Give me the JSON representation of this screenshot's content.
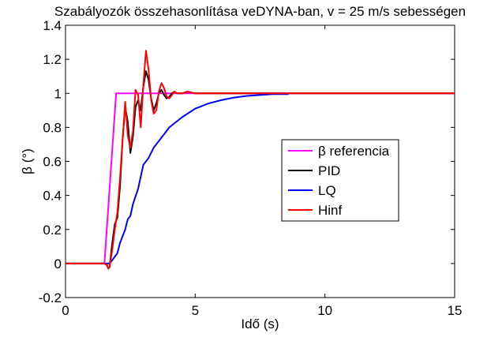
{
  "chart_data": {
    "type": "line",
    "title": "Szabályozók összehasonlítása veDYNA-ban, v = 25 m/s sebességen",
    "xlabel": "Idő (s)",
    "ylabel": "β (°)",
    "xlim": [
      0,
      15
    ],
    "ylim": [
      -0.2,
      1.4
    ],
    "xticks": [
      0,
      5,
      10,
      15
    ],
    "yticks": [
      -0.2,
      0,
      0.2,
      0.4,
      0.6,
      0.8,
      1,
      1.2,
      1.4
    ],
    "xtick_labels": [
      "0",
      "5",
      "10",
      "15"
    ],
    "ytick_labels": [
      "-0.2",
      "0",
      "0.2",
      "0.4",
      "0.6",
      "0.8",
      "1",
      "1.2",
      "1.4"
    ],
    "grid": false,
    "legend_position": "center-right",
    "colors": {
      "beta_ref": "#ff00ff",
      "pid": "#000000",
      "lq": "#0000ff",
      "hinf": "#ff0000"
    },
    "series": [
      {
        "name": "β referencia",
        "key": "beta_ref",
        "x": [
          0,
          1.5,
          1.95,
          15
        ],
        "y": [
          0,
          0,
          1,
          1
        ]
      },
      {
        "name": "PID",
        "key": "pid",
        "x": [
          0,
          1.5,
          1.6,
          1.65,
          1.7,
          1.8,
          1.9,
          2.0,
          2.1,
          2.2,
          2.3,
          2.4,
          2.5,
          2.6,
          2.7,
          2.8,
          2.9,
          3.0,
          3.1,
          3.2,
          3.3,
          3.4,
          3.5,
          3.6,
          3.7,
          3.8,
          3.9,
          4.0,
          4.1,
          4.2,
          4.3,
          4.5,
          4.7,
          5.0,
          6.0,
          15
        ],
        "y": [
          0,
          0,
          -0.01,
          -0.03,
          -0.02,
          0.12,
          0.23,
          0.27,
          0.45,
          0.73,
          0.92,
          0.83,
          0.65,
          0.75,
          0.92,
          0.96,
          0.9,
          1.04,
          1.13,
          1.08,
          0.97,
          0.9,
          0.94,
          1.0,
          1.02,
          0.99,
          0.97,
          0.98,
          1.0,
          1.01,
          1.0,
          1.0,
          1.01,
          1.0,
          1.0,
          1.0
        ]
      },
      {
        "name": "LQ",
        "key": "lq",
        "x": [
          0,
          1.5,
          1.7,
          1.8,
          1.9,
          2.0,
          2.1,
          2.2,
          2.3,
          2.4,
          2.5,
          2.6,
          2.8,
          3.0,
          3.2,
          3.4,
          3.6,
          3.8,
          4.0,
          4.5,
          5.0,
          5.5,
          6.0,
          6.5,
          7.0,
          7.5,
          8.0,
          8.6
        ],
        "y": [
          0,
          0,
          0,
          0.02,
          0.04,
          0.06,
          0.12,
          0.16,
          0.2,
          0.26,
          0.28,
          0.35,
          0.44,
          0.58,
          0.62,
          0.68,
          0.72,
          0.76,
          0.8,
          0.86,
          0.91,
          0.94,
          0.96,
          0.975,
          0.985,
          0.99,
          0.995,
          0.995
        ]
      },
      {
        "name": "Hinf",
        "key": "hinf",
        "x": [
          0,
          1.5,
          1.6,
          1.65,
          1.7,
          1.8,
          1.9,
          2.0,
          2.1,
          2.2,
          2.3,
          2.4,
          2.5,
          2.6,
          2.7,
          2.8,
          2.9,
          3.0,
          3.1,
          3.2,
          3.3,
          3.4,
          3.5,
          3.6,
          3.7,
          3.8,
          3.9,
          4.0,
          4.1,
          4.2,
          4.3,
          4.5,
          4.7,
          5.0,
          6.0,
          15
        ],
        "y": [
          0,
          0,
          -0.01,
          -0.03,
          -0.02,
          0.08,
          0.2,
          0.3,
          0.5,
          0.72,
          0.95,
          0.75,
          0.68,
          0.78,
          1.02,
          0.99,
          0.8,
          1.05,
          1.25,
          1.14,
          0.96,
          0.88,
          0.9,
          1.01,
          1.06,
          1.03,
          0.98,
          0.97,
          0.99,
          1.01,
          1.0,
          1.0,
          1.01,
          1.0,
          1.0,
          1.0
        ]
      }
    ]
  }
}
